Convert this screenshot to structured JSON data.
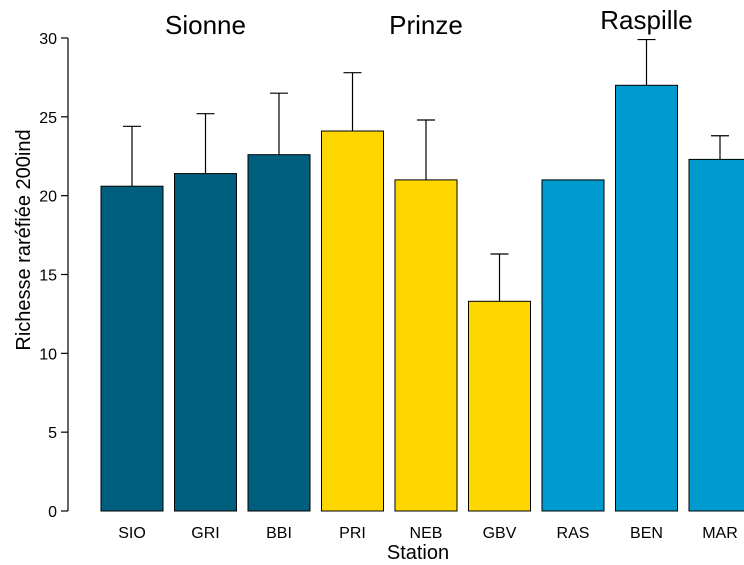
{
  "chart_data": {
    "type": "bar",
    "title": "",
    "xlabel": "Station",
    "ylabel": "Richesse raréfiée 200ind",
    "ylim": [
      0,
      30
    ],
    "yticks": [
      0,
      5,
      10,
      15,
      20,
      25,
      30
    ],
    "grid": false,
    "legend": "none",
    "categories": [
      "SIO",
      "GRI",
      "BBI",
      "PRI",
      "NEB",
      "GBV",
      "RAS",
      "BEN",
      "MAR"
    ],
    "values": [
      20.6,
      21.4,
      22.6,
      24.1,
      21.0,
      13.3,
      21.0,
      27.0,
      22.3
    ],
    "error_upper": [
      24.4,
      25.2,
      26.5,
      27.8,
      24.8,
      16.3,
      null,
      29.9,
      23.8
    ],
    "bar_colors": [
      "#005f7f",
      "#005f7f",
      "#005f7f",
      "#ffd700",
      "#ffd700",
      "#ffd700",
      "#009bce",
      "#009bce",
      "#009bce"
    ],
    "groups": [
      {
        "label": "Sionne",
        "from": 0,
        "to": 2
      },
      {
        "label": "Prinze",
        "from": 3,
        "to": 5
      },
      {
        "label": "Raspille",
        "from": 6,
        "to": 8
      }
    ]
  }
}
